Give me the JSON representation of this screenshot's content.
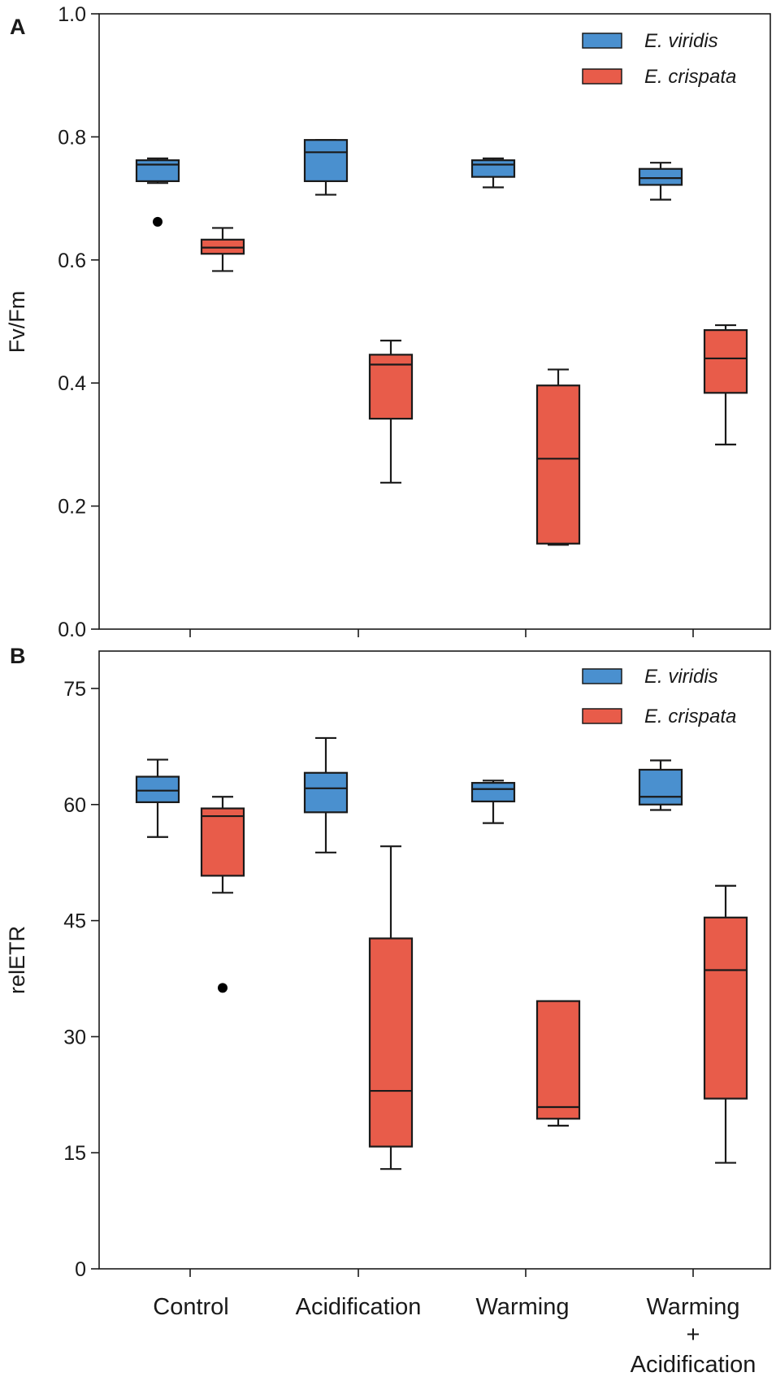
{
  "chart_data": [
    {
      "type": "box",
      "panel": "A",
      "title": "",
      "xlabel": "",
      "ylabel": "Fv/Fm",
      "ylim": [
        0.0,
        1.0
      ],
      "yticks": [
        0.0,
        0.2,
        0.4,
        0.6,
        0.8,
        1.0
      ],
      "ytick_labels": [
        "0.0",
        "0.2",
        "0.4",
        "0.6",
        "0.8",
        "1.0"
      ],
      "categories": [
        "Control",
        "Acidification",
        "Warming",
        "Warming + Acidification"
      ],
      "legend": {
        "position": "top-right"
      },
      "series": [
        {
          "name": "E. viridis",
          "color": "#4a90cf",
          "boxes": [
            {
              "whisker_low": 0.725,
              "q1": 0.728,
              "median": 0.755,
              "q3": 0.762,
              "whisker_high": 0.765,
              "outliers": [
                0.662
              ]
            },
            {
              "whisker_low": 0.706,
              "q1": 0.728,
              "median": 0.775,
              "q3": 0.795,
              "whisker_high": 0.795,
              "outliers": []
            },
            {
              "whisker_low": 0.718,
              "q1": 0.735,
              "median": 0.755,
              "q3": 0.762,
              "whisker_high": 0.765,
              "outliers": []
            },
            {
              "whisker_low": 0.698,
              "q1": 0.722,
              "median": 0.733,
              "q3": 0.748,
              "whisker_high": 0.758,
              "outliers": []
            }
          ]
        },
        {
          "name": "E. crispata",
          "color": "#e85c4a",
          "boxes": [
            {
              "whisker_low": 0.582,
              "q1": 0.61,
              "median": 0.62,
              "q3": 0.633,
              "whisker_high": 0.652,
              "outliers": []
            },
            {
              "whisker_low": 0.238,
              "q1": 0.342,
              "median": 0.43,
              "q3": 0.446,
              "whisker_high": 0.469,
              "outliers": []
            },
            {
              "whisker_low": 0.137,
              "q1": 0.139,
              "median": 0.277,
              "q3": 0.396,
              "whisker_high": 0.422,
              "outliers": []
            },
            {
              "whisker_low": 0.3,
              "q1": 0.384,
              "median": 0.44,
              "q3": 0.486,
              "whisker_high": 0.494,
              "outliers": []
            }
          ]
        }
      ]
    },
    {
      "type": "box",
      "panel": "B",
      "title": "",
      "xlabel": "",
      "ylabel": "relETR",
      "ylim": [
        0,
        82
      ],
      "yticks": [
        0,
        15,
        30,
        45,
        60,
        75
      ],
      "ytick_labels": [
        "0",
        "15",
        "30",
        "45",
        "60",
        "75"
      ],
      "categories": [
        "Control",
        "Acidification",
        "Warming",
        "Warming + Acidification"
      ],
      "category_labels": [
        [
          "Control"
        ],
        [
          "Acidification"
        ],
        [
          "Warming"
        ],
        [
          "Warming",
          "+",
          "Acidification"
        ]
      ],
      "legend": {
        "position": "top-right"
      },
      "series": [
        {
          "name": "E. viridis",
          "color": "#4a90cf",
          "boxes": [
            {
              "whisker_low": 55.8,
              "q1": 60.3,
              "median": 61.8,
              "q3": 63.6,
              "whisker_high": 65.8,
              "outliers": []
            },
            {
              "whisker_low": 53.8,
              "q1": 59.0,
              "median": 62.1,
              "q3": 64.1,
              "whisker_high": 68.6,
              "outliers": []
            },
            {
              "whisker_low": 57.6,
              "q1": 60.4,
              "median": 62.0,
              "q3": 62.8,
              "whisker_high": 63.1,
              "outliers": []
            },
            {
              "whisker_low": 59.3,
              "q1": 60.0,
              "median": 61.0,
              "q3": 64.5,
              "whisker_high": 65.7,
              "outliers": []
            }
          ]
        },
        {
          "name": "E. crispata",
          "color": "#e85c4a",
          "boxes": [
            {
              "whisker_low": 48.6,
              "q1": 50.8,
              "median": 58.5,
              "q3": 59.5,
              "whisker_high": 61.0,
              "outliers": [
                36.3
              ]
            },
            {
              "whisker_low": 12.9,
              "q1": 15.8,
              "median": 23.0,
              "q3": 42.7,
              "whisker_high": 54.6,
              "outliers": []
            },
            {
              "whisker_low": 18.5,
              "q1": 19.4,
              "median": 20.9,
              "q3": 34.6,
              "whisker_high": 34.6,
              "outliers": []
            },
            {
              "whisker_low": 13.7,
              "q1": 22.0,
              "median": 38.6,
              "q3": 45.4,
              "whisker_high": 49.5,
              "outliers": []
            }
          ]
        }
      ]
    }
  ],
  "panels": {
    "a": {
      "letter": "A",
      "ylabel": "Fv/Fm",
      "legend": {
        "viridis": "E. viridis",
        "crispata": "E. crispata"
      }
    },
    "b": {
      "letter": "B",
      "ylabel": "relETR",
      "legend": {
        "viridis": "E. viridis",
        "crispata": "E. crispata"
      }
    }
  },
  "categories": {
    "control": "Control",
    "acidification": "Acidification",
    "warming": "Warming",
    "combined_line1": "Warming",
    "combined_line2": "+",
    "combined_line3": "Acidification"
  },
  "colors": {
    "viridis": "#4a90cf",
    "crispata": "#e85c4a",
    "axis": "#1a1a1a"
  }
}
